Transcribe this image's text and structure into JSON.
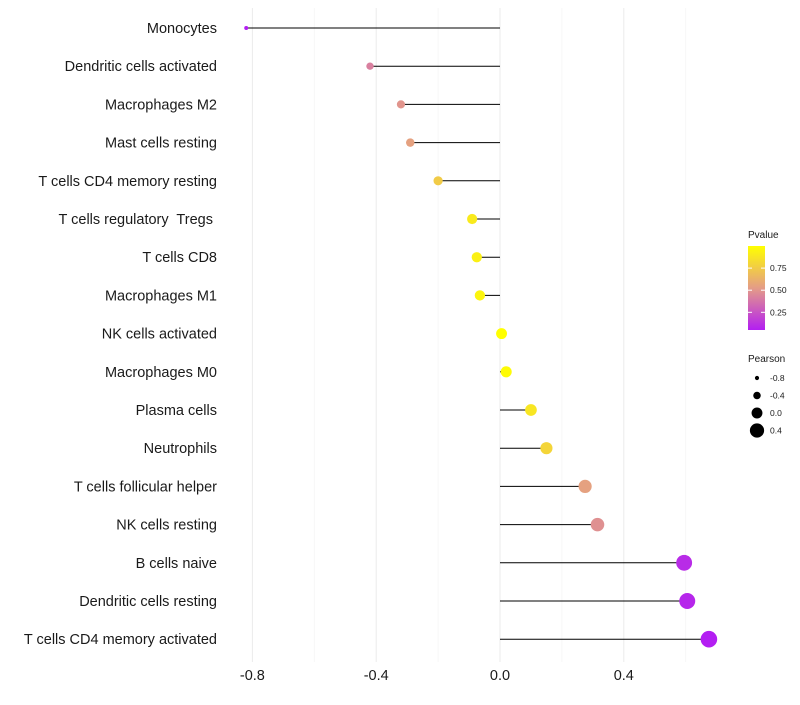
{
  "chart_data": {
    "type": "lollipop",
    "title": "",
    "xlabel": "",
    "ylabel": "",
    "xlim": [
      -0.82,
      0.68
    ],
    "xticks": [
      -0.8,
      -0.4,
      0.0,
      0.4
    ],
    "xtick_labels": [
      "-0.8",
      "-0.4",
      "0.0",
      "0.4"
    ],
    "grid": true,
    "categories": [
      "Monocytes",
      "Dendritic cells activated",
      "Macrophages M2",
      "Mast cells resting",
      "T cells CD4 memory resting",
      "T cells regulatory  Tregs ",
      "T cells CD8",
      "Macrophages M1",
      "NK cells activated",
      "Macrophages M0",
      "Plasma cells",
      "Neutrophils",
      "T cells follicular helper",
      "NK cells resting",
      "B cells naive",
      "Dendritic cells resting",
      "T cells CD4 memory activated"
    ],
    "values": [
      -0.82,
      -0.42,
      -0.32,
      -0.29,
      -0.2,
      -0.09,
      -0.075,
      -0.065,
      0.005,
      0.02,
      0.1,
      0.15,
      0.275,
      0.315,
      0.595,
      0.605,
      0.675
    ],
    "pvalues": [
      0.01,
      0.42,
      0.5,
      0.55,
      0.75,
      0.9,
      0.93,
      0.95,
      1.0,
      0.98,
      0.88,
      0.8,
      0.55,
      0.48,
      0.1,
      0.08,
      0.02
    ],
    "legend_pvalue": {
      "title": "Pvalue",
      "ticks": [
        "0.75",
        "0.50",
        "0.25"
      ],
      "tick_values": [
        0.75,
        0.5,
        0.25
      ],
      "range": [
        0.05,
        1.0
      ],
      "low_color": "#b31ef2",
      "mid_color": "#e49c87",
      "high_color": "#ffff00"
    },
    "legend_pearson": {
      "title": "Pearson",
      "labels": [
        "-0.8",
        "-0.4",
        "0.0",
        "0.4"
      ],
      "values": [
        -0.8,
        -0.4,
        0.0,
        0.4
      ]
    },
    "stem_color": "#000000",
    "grid_color": "#ebebeb",
    "text_color": "#1a1a1a"
  }
}
